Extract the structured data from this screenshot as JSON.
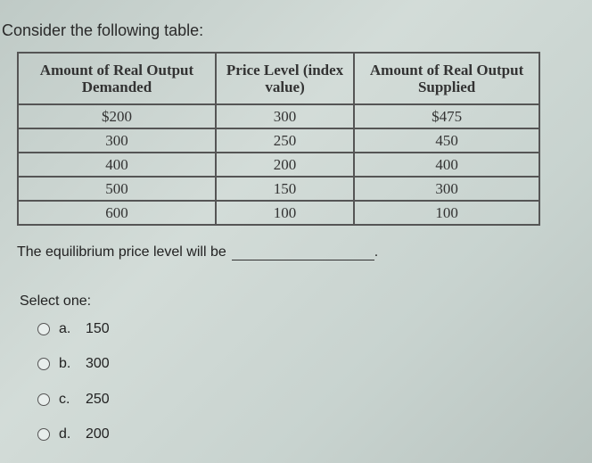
{
  "title": "Consider the following table:",
  "table": {
    "headers": [
      "Amount of Real Output Demanded",
      "Price Level (index value)",
      "Amount of Real Output Supplied"
    ],
    "rows": [
      [
        "$200",
        "300",
        "$475"
      ],
      [
        "300",
        "250",
        "450"
      ],
      [
        "400",
        "200",
        "400"
      ],
      [
        "500",
        "150",
        "300"
      ],
      [
        "600",
        "100",
        "100"
      ]
    ]
  },
  "question": "The equilibrium price level will be",
  "question_end": ".",
  "select_label": "Select one:",
  "options": [
    {
      "letter": "a.",
      "value": "150"
    },
    {
      "letter": "b.",
      "value": "300"
    },
    {
      "letter": "c.",
      "value": "250"
    },
    {
      "letter": "d.",
      "value": "200"
    }
  ]
}
